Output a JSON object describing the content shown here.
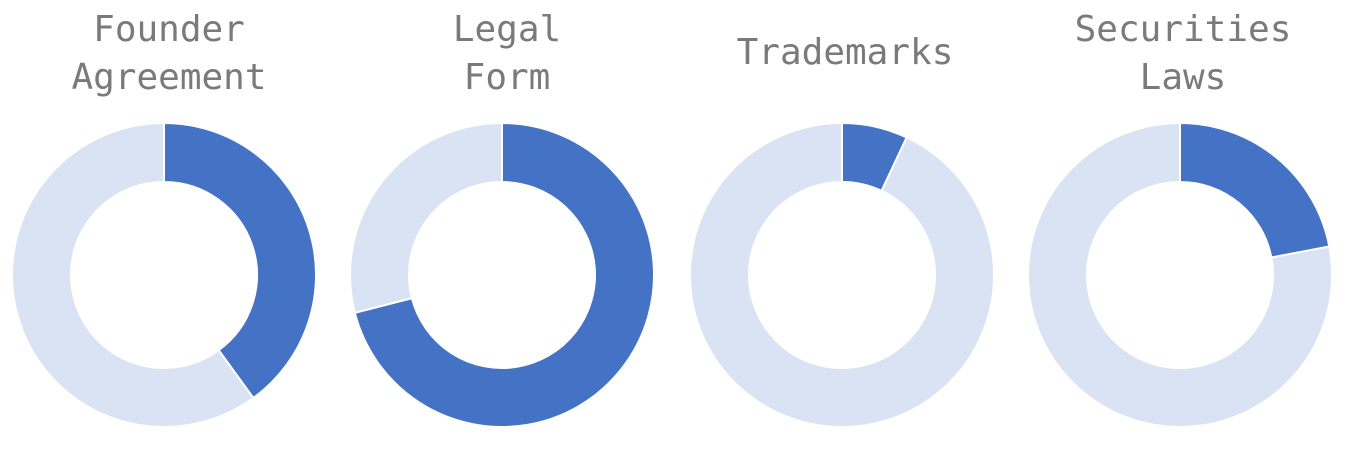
{
  "chart_data": [
    {
      "type": "pie",
      "title": [
        "Founder",
        "Agreement"
      ],
      "slices": [
        {
          "label": "",
          "value": 40,
          "color": "#4472c4"
        },
        {
          "label": "",
          "value": 60,
          "color": "#dae3f3"
        }
      ]
    },
    {
      "type": "pie",
      "title": [
        "Legal",
        "Form"
      ],
      "slices": [
        {
          "label": "",
          "value": 71,
          "color": "#4472c4"
        },
        {
          "label": "",
          "value": 29,
          "color": "#dae3f3"
        }
      ]
    },
    {
      "type": "pie",
      "title": [
        "Trademarks"
      ],
      "slices": [
        {
          "label": "",
          "value": 7,
          "color": "#4472c4"
        },
        {
          "label": "",
          "value": 93,
          "color": "#dae3f3"
        }
      ]
    },
    {
      "type": "pie",
      "title": [
        "Securities",
        "Laws"
      ],
      "slices": [
        {
          "label": "",
          "value": 22,
          "color": "#4472c4"
        },
        {
          "label": "",
          "value": 78,
          "color": "#dae3f3"
        }
      ]
    }
  ]
}
